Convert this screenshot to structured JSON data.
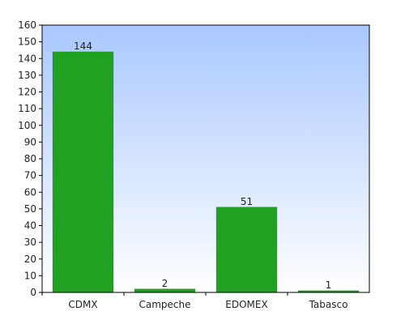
{
  "chart_data": {
    "type": "bar",
    "categories": [
      "CDMX",
      "Campeche",
      "EDOMEX",
      "Tabasco"
    ],
    "values": [
      144,
      2,
      51,
      1
    ],
    "title": "",
    "xlabel": "",
    "ylabel": "",
    "ylim": [
      0,
      160
    ],
    "y_ticks": [
      0,
      10,
      20,
      30,
      40,
      50,
      60,
      70,
      80,
      90,
      100,
      110,
      120,
      130,
      140,
      150,
      160
    ],
    "grid": false,
    "legend": "none",
    "colors": {
      "bar": "#21a121",
      "bar_edge": "#1a8c1a",
      "plot_bg_top": "#a9c8ff",
      "plot_bg_bottom": "#ffffff",
      "axis": "#000000"
    }
  }
}
